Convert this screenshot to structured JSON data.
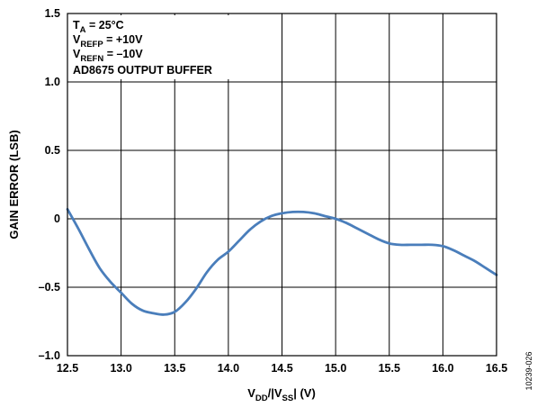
{
  "chart_data": {
    "type": "line",
    "title": "",
    "xlabel": {
      "main": "V",
      "sub1": "DD",
      "mid": "/|V",
      "sub2": "SS",
      "end": "| (V)"
    },
    "ylabel": "GAIN ERROR (LSB)",
    "xlim": [
      12.5,
      16.5
    ],
    "ylim": [
      -1.0,
      1.5
    ],
    "x_ticks": [
      "12.5",
      "13.0",
      "13.5",
      "14.0",
      "14.5",
      "15.0",
      "15.5",
      "16.0",
      "16.5"
    ],
    "y_ticks": [
      "–1.0",
      "–0.5",
      "0",
      "0.5",
      "1.0",
      "1.5"
    ],
    "grid": true,
    "line_color": "#4a7ebb",
    "annotations": {
      "line1": {
        "main": "T",
        "sub": "A",
        "rest": " = 25°C"
      },
      "line2": {
        "main": "V",
        "sub": "REFP",
        "rest": " = +10V"
      },
      "line3": {
        "main": "V",
        "sub": "REFN",
        "rest": " = –10V"
      },
      "line4": "AD8675 OUTPUT BUFFER"
    },
    "figure_id": "10239-026",
    "series": [
      {
        "x": [
          12.5,
          12.6,
          12.7,
          12.8,
          12.9,
          13.0,
          13.1,
          13.2,
          13.3,
          13.4,
          13.5,
          13.6,
          13.7,
          13.8,
          13.9,
          14.0,
          14.1,
          14.2,
          14.3,
          14.4,
          14.5,
          14.6,
          14.7,
          14.8,
          14.9,
          15.0,
          15.1,
          15.2,
          15.3,
          15.4,
          15.5,
          15.6,
          15.7,
          15.8,
          15.9,
          16.0,
          16.1,
          16.2,
          16.3,
          16.4,
          16.5
        ],
        "y": [
          0.07,
          -0.07,
          -0.22,
          -0.36,
          -0.46,
          -0.54,
          -0.62,
          -0.67,
          -0.69,
          -0.7,
          -0.68,
          -0.61,
          -0.51,
          -0.39,
          -0.3,
          -0.24,
          -0.16,
          -0.08,
          -0.02,
          0.02,
          0.04,
          0.05,
          0.05,
          0.04,
          0.02,
          0.0,
          -0.03,
          -0.07,
          -0.11,
          -0.15,
          -0.18,
          -0.19,
          -0.19,
          -0.19,
          -0.19,
          -0.2,
          -0.23,
          -0.27,
          -0.31,
          -0.36,
          -0.41
        ]
      }
    ]
  }
}
